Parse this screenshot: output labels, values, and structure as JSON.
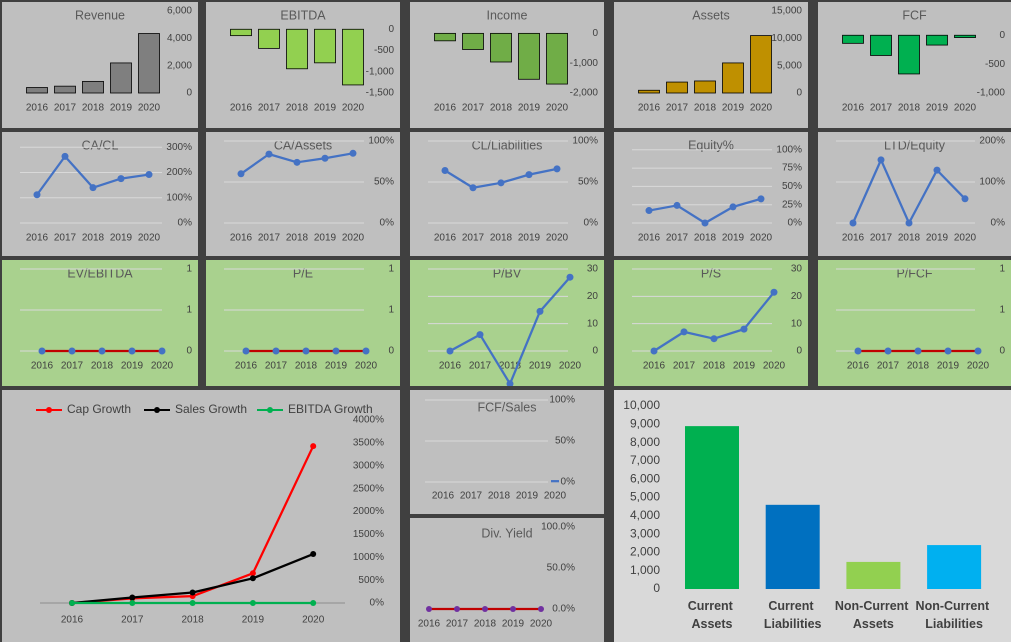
{
  "chart_data": [
    {
      "type": "bar",
      "title": "Revenue",
      "categories": [
        "2016",
        "2017",
        "2018",
        "2019",
        "2020"
      ],
      "values": [
        400,
        500,
        850,
        2200,
        4350
      ],
      "color": "#7f7f7f",
      "ylim": [
        0,
        6000
      ],
      "yticks": [
        0,
        {
          "value": 2000,
          "label": "2,000"
        },
        {
          "value": 4000,
          "label": "4,000"
        },
        {
          "value": 6000,
          "label": "6,000"
        }
      ],
      "grid": false
    },
    {
      "type": "bar",
      "title": "EBITDA",
      "categories": [
        "2016",
        "2017",
        "2018",
        "2019",
        "2020"
      ],
      "values": [
        -150,
        -450,
        -930,
        -790,
        -1310
      ],
      "color": "#92d050",
      "ylim": [
        -1500,
        430
      ],
      "yticks": [
        0,
        -500,
        {
          "value": -1000,
          "label": "-1,000"
        },
        {
          "value": -1500,
          "label": "-1,500"
        }
      ],
      "grid": false
    },
    {
      "type": "bar",
      "title": "Income",
      "categories": [
        "2016",
        "2017",
        "2018",
        "2019",
        "2020"
      ],
      "values": [
        -250,
        -540,
        -960,
        -1540,
        -1700
      ],
      "color": "#70ad47",
      "ylim": [
        -2000,
        750
      ],
      "yticks": [
        0,
        {
          "value": -1000,
          "label": "-1,000"
        },
        {
          "value": -2000,
          "label": "-2,000"
        }
      ],
      "grid": false
    },
    {
      "type": "bar",
      "title": "Assets",
      "categories": [
        "2016",
        "2017",
        "2018",
        "2019",
        "2020"
      ],
      "values": [
        500,
        2000,
        2200,
        5500,
        10500
      ],
      "color": "#bf9000",
      "ylim": [
        0,
        15000
      ],
      "yticks": [
        0,
        {
          "value": 5000,
          "label": "5,000"
        },
        {
          "value": 10000,
          "label": "10,000"
        },
        {
          "value": 15000,
          "label": "15,000"
        }
      ],
      "grid": false
    },
    {
      "type": "bar",
      "title": "FCF",
      "categories": [
        "2016",
        "2017",
        "2018",
        "2019",
        "2020"
      ],
      "values": [
        -140,
        -350,
        -670,
        -170,
        -40
      ],
      "color": "#00b050",
      "ylim": [
        -1000,
        420
      ],
      "yticks": [
        0,
        -500,
        {
          "value": -1000,
          "label": "-1,000"
        }
      ],
      "grid": false
    },
    {
      "type": "line",
      "title": "CA/CL",
      "categories": [
        "2016",
        "2017",
        "2018",
        "2019",
        "2020"
      ],
      "values": [
        112,
        264,
        140,
        176,
        192
      ],
      "color": "#4472c4",
      "ylim": [
        0,
        325
      ],
      "yticks": [
        {
          "value": 0,
          "label": "0%"
        },
        {
          "value": 100,
          "label": "100%"
        },
        {
          "value": 200,
          "label": "200%"
        },
        {
          "value": 300,
          "label": "300%"
        }
      ],
      "grid": true
    },
    {
      "type": "line",
      "title": "CA/Assets",
      "categories": [
        "2016",
        "2017",
        "2018",
        "2019",
        "2020"
      ],
      "values": [
        60,
        84,
        74,
        79,
        85
      ],
      "color": "#4472c4",
      "ylim": [
        0,
        100
      ],
      "yticks": [
        {
          "value": 0,
          "label": "0%"
        },
        {
          "value": 50,
          "label": "50%"
        },
        {
          "value": 100,
          "label": "100%"
        }
      ],
      "grid": true
    },
    {
      "type": "line",
      "title": "CL/Liabilities",
      "categories": [
        "2016",
        "2017",
        "2018",
        "2019",
        "2020"
      ],
      "values": [
        64,
        43,
        49,
        59,
        66
      ],
      "color": "#4472c4",
      "ylim": [
        0,
        100
      ],
      "yticks": [
        {
          "value": 0,
          "label": "0%"
        },
        {
          "value": 50,
          "label": "50%"
        },
        {
          "value": 100,
          "label": "100%"
        }
      ],
      "grid": true
    },
    {
      "type": "line",
      "title": "Equity%",
      "categories": [
        "2016",
        "2017",
        "2018",
        "2019",
        "2020"
      ],
      "values": [
        17,
        24,
        0,
        22,
        33
      ],
      "color": "#4472c4",
      "ylim": [
        0,
        112
      ],
      "yticks": [
        {
          "value": 0,
          "label": "0%"
        },
        {
          "value": 25,
          "label": "25%"
        },
        {
          "value": 50,
          "label": "50%"
        },
        {
          "value": 75,
          "label": "75%"
        },
        {
          "value": 100,
          "label": "100%"
        }
      ],
      "grid": true
    },
    {
      "type": "line",
      "title": "LTD/Equity",
      "categories": [
        "2016",
        "2017",
        "2018",
        "2019",
        "2020"
      ],
      "values": [
        0,
        154,
        0,
        129,
        59
      ],
      "color": "#4472c4",
      "ylim": [
        0,
        200
      ],
      "yticks": [
        {
          "value": 0,
          "label": "0%"
        },
        {
          "value": 100,
          "label": "100%"
        },
        {
          "value": 200,
          "label": "200%"
        }
      ],
      "grid": true
    },
    {
      "type": "line",
      "title": "EV/EBITDA",
      "categories": [
        "2016",
        "2017",
        "2018",
        "2019",
        "2020"
      ],
      "values": [
        0,
        0,
        0,
        0,
        0
      ],
      "color": "#4472c4",
      "line_color": "#c00000",
      "ylim": [
        0,
        1
      ],
      "yticks": [
        0,
        {
          "value": 0.5,
          "label": "1"
        },
        1
      ],
      "grid": true
    },
    {
      "type": "line",
      "title": "P/E",
      "categories": [
        "2016",
        "2017",
        "2018",
        "2019",
        "2020"
      ],
      "values": [
        0,
        0,
        0,
        0,
        0
      ],
      "color": "#4472c4",
      "line_color": "#c00000",
      "ylim": [
        0,
        1
      ],
      "yticks": [
        0,
        {
          "value": 0.5,
          "label": "1"
        },
        1
      ],
      "grid": true
    },
    {
      "type": "line",
      "title": "P/BV",
      "categories": [
        "2016",
        "2017",
        "2018",
        "2019",
        "2020"
      ],
      "values": [
        0,
        6,
        -12,
        14.5,
        27
      ],
      "color": "#4472c4",
      "ylim": [
        0,
        30
      ],
      "yticks": [
        0,
        10,
        20,
        30
      ],
      "grid": true
    },
    {
      "type": "line",
      "title": "P/S",
      "categories": [
        "2016",
        "2017",
        "2018",
        "2019",
        "2020"
      ],
      "values": [
        0,
        7,
        4.5,
        8,
        21.5
      ],
      "color": "#4472c4",
      "ylim": [
        0,
        30
      ],
      "yticks": [
        0,
        10,
        20,
        30
      ],
      "grid": true
    },
    {
      "type": "line",
      "title": "P/FCF",
      "categories": [
        "2016",
        "2017",
        "2018",
        "2019",
        "2020"
      ],
      "values": [
        0,
        0,
        0,
        0,
        0
      ],
      "color": "#4472c4",
      "line_color": "#c00000",
      "ylim": [
        0,
        1
      ],
      "yticks": [
        0,
        {
          "value": 0.5,
          "label": "1"
        },
        1
      ],
      "grid": true
    },
    {
      "type": "line",
      "categories": [
        "2016",
        "2017",
        "2018",
        "2019",
        "2020"
      ],
      "series": [
        {
          "name": "Cap Growth",
          "color": "#ff0000",
          "values": [
            0,
            100,
            150,
            650,
            3430
          ]
        },
        {
          "name": "Sales Growth",
          "color": "#000000",
          "values": [
            0,
            120,
            230,
            540,
            1070
          ]
        },
        {
          "name": "EBITDA Growth",
          "color": "#00b050",
          "values": [
            0,
            0,
            0,
            0,
            0
          ]
        }
      ],
      "ylim": [
        0,
        4000
      ],
      "yticks": [
        {
          "value": 0,
          "label": "0%"
        },
        {
          "value": 500,
          "label": "500%"
        },
        {
          "value": 1000,
          "label": "1000%"
        },
        {
          "value": 1500,
          "label": "1500%"
        },
        {
          "value": 2000,
          "label": "2000%"
        },
        {
          "value": 2500,
          "label": "2500%"
        },
        {
          "value": 3000,
          "label": "3000%"
        },
        {
          "value": 3500,
          "label": "3500%"
        },
        {
          "value": 4000,
          "label": "4000%"
        }
      ],
      "grid": false,
      "legend": "top"
    },
    {
      "type": "line",
      "title": "FCF/Sales",
      "categories": [
        "2016",
        "2017",
        "2018",
        "2019",
        "2020"
      ],
      "values": [
        null,
        null,
        null,
        null,
        1
      ],
      "color": "#4472c4",
      "markers": false,
      "ylim": [
        0,
        100
      ],
      "yticks": [
        {
          "value": 0,
          "label": "0%"
        },
        {
          "value": 50,
          "label": "50%"
        },
        {
          "value": 100,
          "label": "100%"
        }
      ],
      "grid": true
    },
    {
      "type": "line",
      "title": "Div. Yield",
      "categories": [
        "2016",
        "2017",
        "2018",
        "2019",
        "2020"
      ],
      "values": [
        0,
        0,
        0,
        0,
        0
      ],
      "color": "#7030a0",
      "line_color": "#c00000",
      "ylim": [
        0,
        100
      ],
      "yticks": [
        {
          "value": 0,
          "label": "0.0%"
        },
        {
          "value": 50,
          "label": "50.0%"
        },
        {
          "value": 100,
          "label": "100.0%"
        }
      ],
      "grid": false
    },
    {
      "type": "bar",
      "categories": [
        "Current Assets",
        "Current Liabilities",
        "Non-Current Assets",
        "Non-Current Liabilities"
      ],
      "values": [
        8900,
        4600,
        1480,
        2400
      ],
      "colors": [
        "#00b050",
        "#0070c0",
        "#92d050",
        "#00b0f0"
      ],
      "ylim": [
        0,
        10000
      ],
      "yticks": [
        0,
        {
          "value": 1000,
          "label": "1,000"
        },
        {
          "value": 2000,
          "label": "2,000"
        },
        {
          "value": 3000,
          "label": "3,000"
        },
        {
          "value": 4000,
          "label": "4,000"
        },
        {
          "value": 5000,
          "label": "5,000"
        },
        {
          "value": 6000,
          "label": "6,000"
        },
        {
          "value": 7000,
          "label": "7,000"
        },
        {
          "value": 8000,
          "label": "8,000"
        },
        {
          "value": 9000,
          "label": "9,000"
        },
        {
          "value": 10000,
          "label": "10,000"
        }
      ],
      "grid": false
    }
  ]
}
